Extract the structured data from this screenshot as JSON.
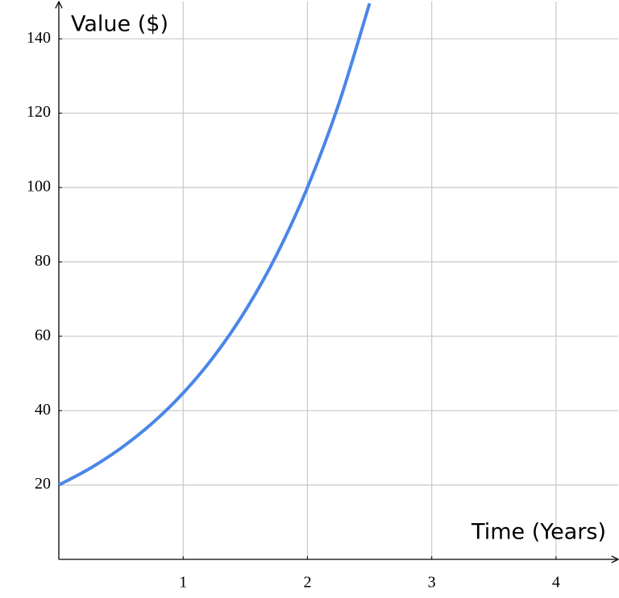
{
  "chart_data": {
    "type": "line",
    "x_label": "Time (Years)",
    "y_label": "Value ($)",
    "x": [
      0,
      0.25,
      0.5,
      0.75,
      1,
      1.25,
      1.5,
      1.75,
      2,
      2.25,
      2.5
    ],
    "series": [
      {
        "color": "#4a86e8",
        "values": [
          20,
          24.46,
          29.91,
          36.57,
          44.72,
          54.69,
          66.87,
          81.78,
          100,
          122.28,
          149.53
        ]
      }
    ],
    "xlim": [
      0,
      4.5
    ],
    "ylim": [
      0,
      150
    ],
    "xticks": [
      1,
      2,
      3,
      4
    ],
    "yticks": [
      20,
      40,
      60,
      80,
      100,
      120,
      140
    ],
    "grid": true
  }
}
